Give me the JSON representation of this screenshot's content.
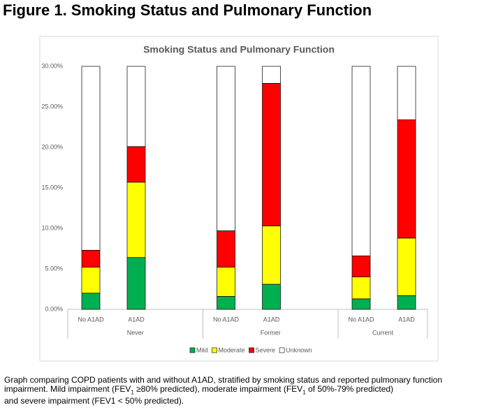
{
  "heading": "Figure 1.  Smoking Status and Pulmonary Function",
  "chart_data": {
    "type": "stacked_bar",
    "title": "Smoking Status and Pulmonary Function",
    "categories": [
      "No A1AD",
      "A1AD",
      "No A1AD",
      "A1AD",
      "No A1AD",
      "A1AD"
    ],
    "groups": [
      "Never",
      "Former",
      "Current"
    ],
    "series": [
      {
        "name": "Mild",
        "color": "#00b050",
        "values": [
          2.0,
          6.4,
          1.6,
          3.1,
          1.3,
          1.7
        ]
      },
      {
        "name": "Moderate",
        "color": "#ffff00",
        "values": [
          3.2,
          9.3,
          3.6,
          7.2,
          2.7,
          7.1
        ]
      },
      {
        "name": "Severe",
        "color": "#ff0000",
        "values": [
          2.1,
          4.4,
          4.5,
          17.6,
          2.6,
          14.6
        ]
      },
      {
        "name": "Unknown",
        "color": "#ffffff",
        "values": [
          22.7,
          9.9,
          20.3,
          2.1,
          23.4,
          6.6
        ]
      }
    ],
    "ylim": [
      0,
      30
    ],
    "yticks": [
      {
        "value": 0,
        "label": "0.00%"
      },
      {
        "value": 5,
        "label": "5.00%"
      },
      {
        "value": 10,
        "label": "10.00%"
      },
      {
        "value": 15,
        "label": "15.00%"
      },
      {
        "value": 20,
        "label": "20.00%"
      },
      {
        "value": 25,
        "label": "25.00%"
      },
      {
        "value": 30,
        "label": "30.00%"
      }
    ],
    "grid": false,
    "legend": "bottom"
  },
  "caption": [
    "Graph comparing COPD patients with and without A1AD, stratified by smoking status and reported pulmonary function impairment. Mild impairment (FEV",
    "1",
    " ≥80% predicted), moderate impairment (FEV",
    "1",
    "  of 50%-79% predicted)",
    "and severe impairment (FEV",
    "1",
    "  < 50% predicted)."
  ]
}
